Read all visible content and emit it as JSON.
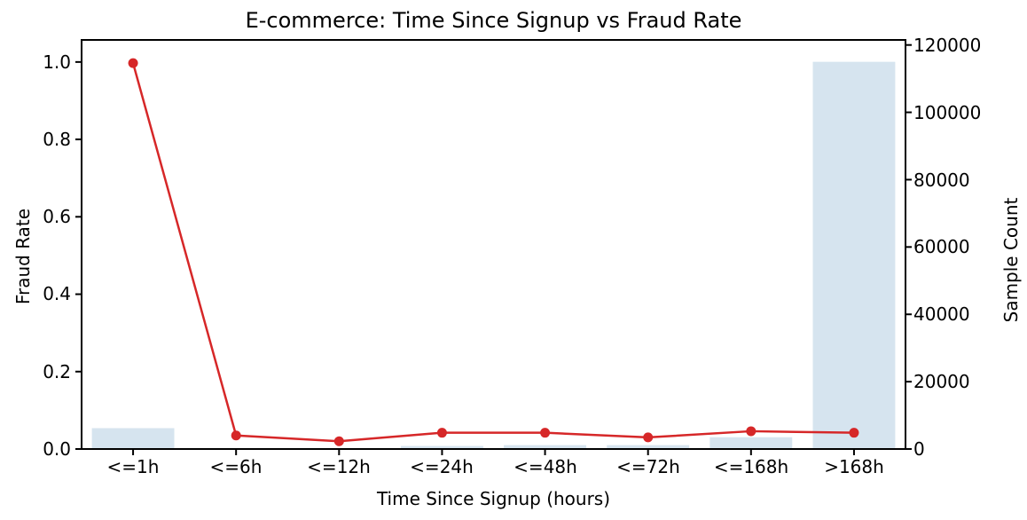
{
  "chart_data": {
    "type": "combo",
    "title": "E-commerce: Time Since Signup vs Fraud Rate",
    "xlabel": "Time Since Signup (hours)",
    "ylabel_left": "Fraud Rate",
    "ylabel_right": "Sample Count",
    "categories": [
      "<=1h",
      "<=6h",
      "<=12h",
      "<=24h",
      "<=48h",
      "<=72h",
      "<=168h",
      ">168h"
    ],
    "series": [
      {
        "name": "Fraud Rate",
        "type": "line",
        "axis": "left",
        "color": "#d62728",
        "marker": "circle",
        "values": [
          0.997,
          0.035,
          0.02,
          0.042,
          0.042,
          0.03,
          0.046,
          0.042
        ]
      },
      {
        "name": "Sample Count",
        "type": "bar",
        "axis": "right",
        "color": "#d6e4ef",
        "values": [
          6200,
          150,
          100,
          900,
          1150,
          1150,
          3500,
          115000
        ]
      }
    ],
    "left_ticks": [
      "0.0",
      "0.2",
      "0.4",
      "0.6",
      "0.8",
      "1.0"
    ],
    "right_ticks": [
      "0",
      "20000",
      "40000",
      "60000",
      "80000",
      "100000",
      "120000"
    ],
    "ylim_left": [
      0,
      1.057
    ],
    "ylim_right": [
      0,
      121500
    ],
    "grid": false,
    "legend": "none",
    "spine_color": "#000000",
    "background": "#ffffff"
  }
}
